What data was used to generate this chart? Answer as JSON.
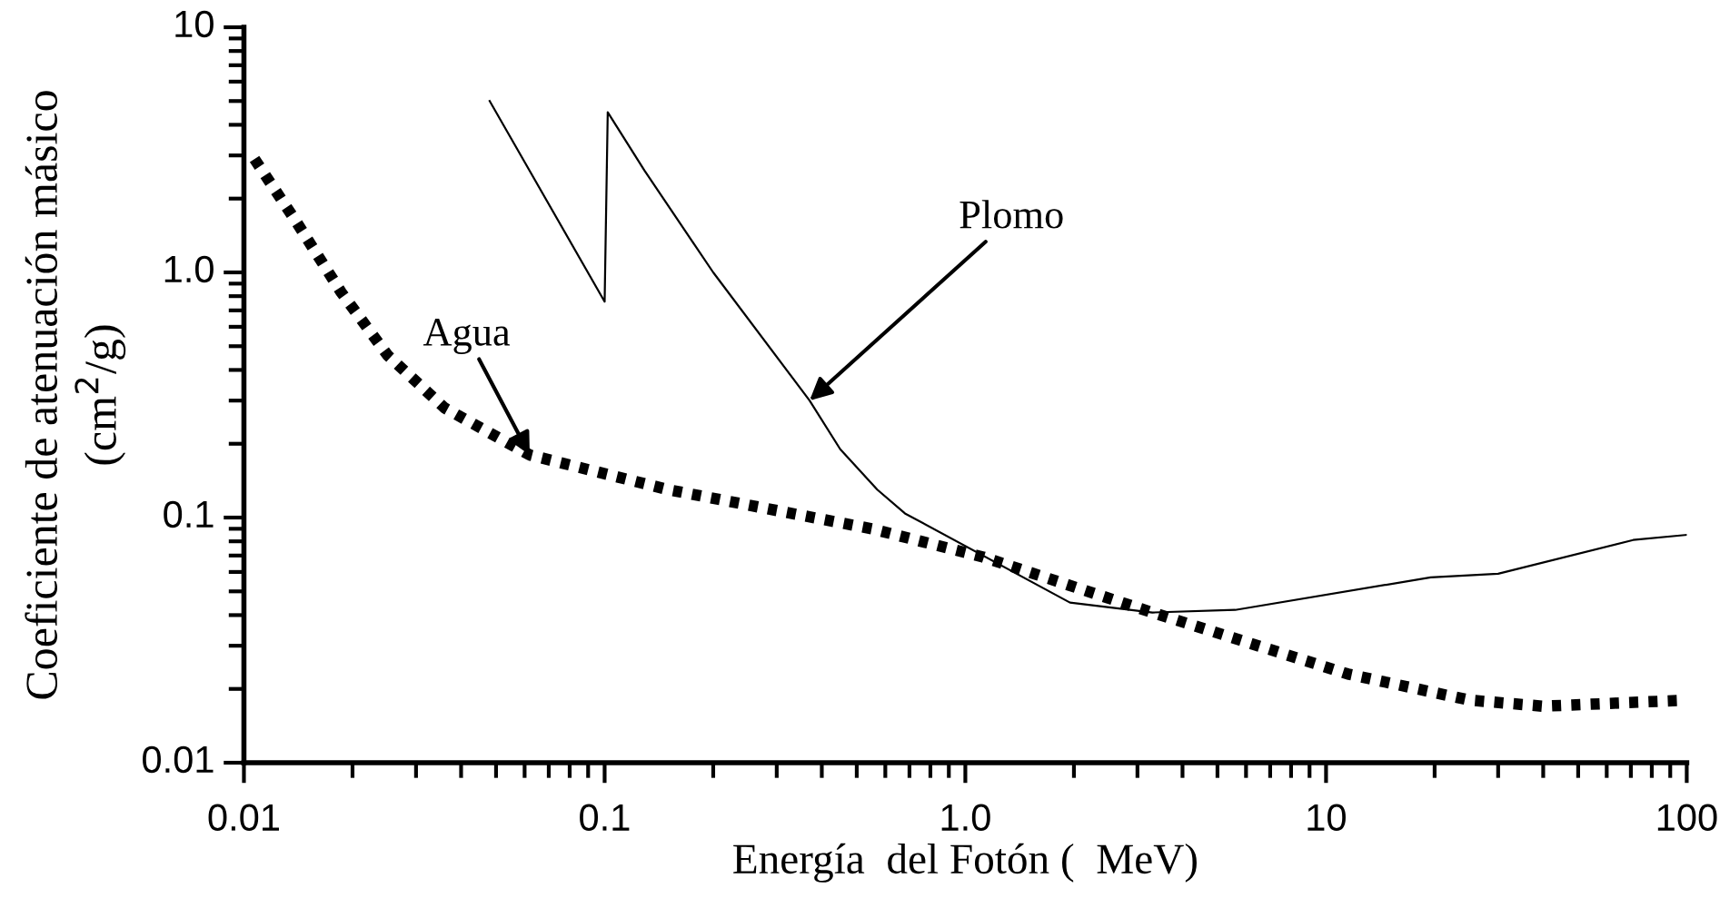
{
  "chart_data": {
    "type": "line",
    "xlabel": "Energía  del Fotón (  MeV)",
    "ylabel": "Coeficiente de atenuación másico\n(cm$^{2}$/g)",
    "log": "xy",
    "grid": false,
    "xlim": [
      0.01,
      100
    ],
    "ylim": [
      0.01,
      10
    ],
    "xticks": [
      0.01,
      {
        "value": 0.1,
        "label": "0.1"
      },
      {
        "value": 1,
        "label": "1.0"
      },
      10,
      100
    ],
    "yticks": [
      0.01,
      {
        "value": 0.1,
        "label": "0.1"
      },
      {
        "value": 1,
        "label": "1.0"
      },
      10
    ],
    "series": [
      {
        "color": "#000000",
        "line_style": "solid",
        "x": [
          0.048,
          0.1,
          0.102,
          0.129,
          0.2,
          0.37,
          0.45,
          0.57,
          0.68,
          1.95,
          3.3,
          5.6,
          19.5,
          30,
          71,
          100
        ],
        "values": [
          5.0,
          0.76,
          4.5,
          2.6,
          1.0,
          0.3,
          0.19,
          0.13,
          0.104,
          0.045,
          0.041,
          0.042,
          0.057,
          0.059,
          0.081,
          0.085
        ]
      },
      {
        "color": "#000000",
        "line_style": "dotted",
        "x": [
          0.0107,
          0.014,
          0.0186,
          0.025,
          0.036,
          0.062,
          0.15,
          0.55,
          1.12,
          3.3,
          11.5,
          25,
          40,
          100
        ],
        "values": [
          2.9,
          1.6,
          0.83,
          0.46,
          0.28,
          0.18,
          0.13,
          0.09,
          0.069,
          0.041,
          0.023,
          0.018,
          0.017,
          0.018
        ]
      }
    ],
    "annotations": [
      {
        "text": "Agua",
        "x": 0.062,
        "y": 0.18
      },
      {
        "text": "Plomo",
        "x": 0.37,
        "y": 0.3
      }
    ]
  }
}
